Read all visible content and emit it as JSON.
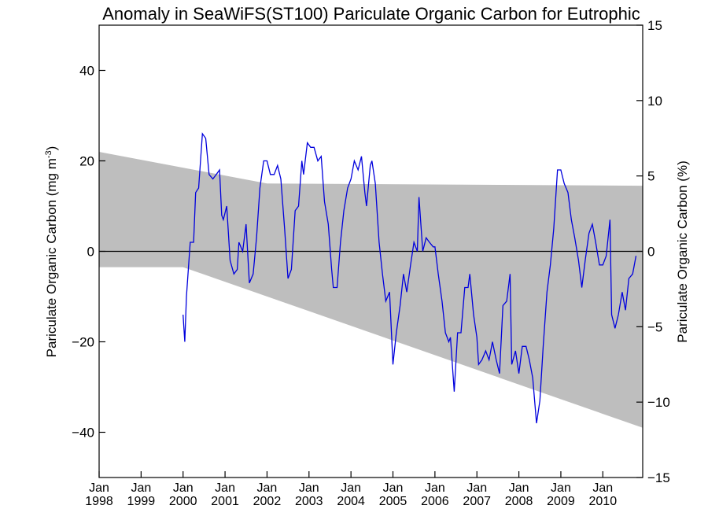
{
  "chart_data": {
    "type": "line",
    "title": "Anomaly in SeaWiFS(ST100) Pariculate Organic Carbon for Eutrophic",
    "ylabel_left": "Pariculate Organic Carbon (mg m",
    "ylabel_left_sup": "-3",
    "ylabel_left_end": ")",
    "ylabel_right": "Pariculate Organic Carbon (%)",
    "x_range": [
      1998.0,
      2010.95
    ],
    "ylim_left": [
      -50,
      50
    ],
    "ylim_right": [
      -15,
      15
    ],
    "left_ticks": [
      -40,
      -20,
      0,
      20,
      40
    ],
    "left_tick_labels": [
      "−40",
      "−20",
      "0",
      "20",
      "40"
    ],
    "right_ticks": [
      -15,
      -10,
      -5,
      0,
      5,
      10,
      15
    ],
    "right_tick_labels": [
      "−15",
      "−10",
      "−5",
      "0",
      "5",
      "10",
      "15"
    ],
    "x_ticks": [
      {
        "month": "Jan",
        "year": "1998",
        "x": 1998.0
      },
      {
        "month": "Jan",
        "year": "1999",
        "x": 1999.0
      },
      {
        "month": "Jan",
        "year": "2000",
        "x": 2000.0
      },
      {
        "month": "Jan",
        "year": "2001",
        "x": 2001.0
      },
      {
        "month": "Jan",
        "year": "2002",
        "x": 2002.0
      },
      {
        "month": "Jan",
        "year": "2003",
        "x": 2003.0
      },
      {
        "month": "Jan",
        "year": "2004",
        "x": 2004.0
      },
      {
        "month": "Jan",
        "year": "2005",
        "x": 2005.0
      },
      {
        "month": "Jan",
        "year": "2006",
        "x": 2006.0
      },
      {
        "month": "Jan",
        "year": "2007",
        "x": 2007.0
      },
      {
        "month": "Jan",
        "year": "2008",
        "x": 2008.0
      },
      {
        "month": "Jan",
        "year": "2009",
        "x": 2009.0
      },
      {
        "month": "Jan",
        "year": "2010",
        "x": 2010.0
      }
    ],
    "band": {
      "color": "#bebebe",
      "upper": [
        [
          1998.0,
          22.0
        ],
        [
          2002.0,
          15.0
        ],
        [
          2010.95,
          14.5
        ]
      ],
      "lower": [
        [
          1998.0,
          -3.5
        ],
        [
          2000.0,
          -3.5
        ],
        [
          2010.95,
          -39.0
        ]
      ]
    },
    "zero_line": 0,
    "line_color": "#0000dd",
    "series": [
      {
        "values": [
          [
            1998.0,
            -14
          ],
          [
            1998.04,
            -20
          ],
          [
            1998.08,
            -10
          ],
          [
            1998.17,
            2
          ],
          [
            1998.25,
            2
          ],
          [
            1998.3,
            13
          ],
          [
            1998.37,
            14
          ],
          [
            1998.46,
            26
          ],
          [
            1998.54,
            25
          ],
          [
            1998.62,
            17
          ],
          [
            1998.71,
            16
          ],
          [
            1998.79,
            17
          ],
          [
            1998.87,
            18
          ],
          [
            1998.92,
            8
          ],
          [
            1998.96,
            7
          ],
          [
            1999.04,
            10
          ],
          [
            1999.12,
            -2
          ],
          [
            1999.21,
            -5
          ],
          [
            1999.29,
            -4
          ],
          [
            1999.33,
            2
          ],
          [
            1999.42,
            0
          ],
          [
            1999.5,
            6
          ],
          [
            1999.58,
            -7
          ],
          [
            1999.67,
            -5
          ],
          [
            1999.75,
            3
          ],
          [
            1999.83,
            14
          ],
          [
            1999.92,
            20
          ],
          [
            2000.0,
            20
          ],
          [
            2000.08,
            17
          ],
          [
            2000.17,
            17
          ],
          [
            2000.25,
            19
          ],
          [
            2000.33,
            16
          ],
          [
            2000.42,
            5
          ],
          [
            2000.5,
            -6
          ],
          [
            2000.58,
            -4
          ],
          [
            2000.67,
            9
          ],
          [
            2000.75,
            10
          ],
          [
            2000.83,
            20
          ],
          [
            2000.87,
            17
          ],
          [
            2000.96,
            24
          ],
          [
            2001.04,
            23
          ],
          [
            2001.12,
            23
          ],
          [
            2001.21,
            20
          ],
          [
            2001.29,
            21
          ],
          [
            2001.37,
            11
          ],
          [
            2001.46,
            6
          ],
          [
            2001.54,
            -4
          ],
          [
            2001.58,
            -8
          ],
          [
            2001.67,
            -8
          ],
          [
            2001.75,
            2
          ],
          [
            2001.83,
            9
          ],
          [
            2001.92,
            14
          ],
          [
            2002.0,
            16
          ],
          [
            2002.08,
            20
          ],
          [
            2002.17,
            18
          ],
          [
            2002.25,
            21
          ],
          [
            2002.33,
            13
          ],
          [
            2002.37,
            10
          ],
          [
            2002.46,
            19
          ],
          [
            2002.5,
            20
          ],
          [
            2002.58,
            15
          ],
          [
            2002.67,
            2
          ],
          [
            2002.75,
            -5
          ],
          [
            2002.83,
            -11
          ],
          [
            2002.92,
            -9
          ],
          [
            2003.0,
            -25
          ],
          [
            2003.08,
            -18
          ],
          [
            2003.17,
            -12
          ],
          [
            2003.25,
            -5
          ],
          [
            2003.33,
            -9
          ],
          [
            2003.42,
            -3
          ],
          [
            2003.5,
            2
          ],
          [
            2003.58,
            0
          ],
          [
            2003.62,
            12
          ],
          [
            2003.71,
            0
          ],
          [
            2003.79,
            3
          ],
          [
            2003.87,
            2
          ],
          [
            2003.96,
            1
          ],
          [
            2004.0,
            1
          ],
          [
            2004.08,
            -5
          ],
          [
            2004.17,
            -11
          ],
          [
            2004.25,
            -18
          ],
          [
            2004.33,
            -20
          ],
          [
            2004.37,
            -19
          ],
          [
            2004.46,
            -31
          ],
          [
            2004.54,
            -18
          ],
          [
            2004.62,
            -18
          ],
          [
            2004.71,
            -8
          ],
          [
            2004.79,
            -8
          ],
          [
            2004.83,
            -5
          ],
          [
            2004.92,
            -14
          ],
          [
            2005.0,
            -19
          ],
          [
            2005.04,
            -25
          ],
          [
            2005.12,
            -24
          ],
          [
            2005.21,
            -22
          ],
          [
            2005.29,
            -24
          ],
          [
            2005.37,
            -20
          ],
          [
            2005.46,
            -24
          ],
          [
            2005.54,
            -27
          ],
          [
            2005.62,
            -12
          ],
          [
            2005.71,
            -11
          ],
          [
            2005.79,
            -5
          ],
          [
            2005.83,
            -25
          ],
          [
            2005.92,
            -22
          ],
          [
            2006.0,
            -27
          ],
          [
            2006.08,
            -21
          ],
          [
            2006.17,
            -21
          ],
          [
            2006.25,
            -24
          ],
          [
            2006.33,
            -28
          ],
          [
            2006.42,
            -38
          ],
          [
            2006.5,
            -33
          ],
          [
            2006.58,
            -21
          ],
          [
            2006.67,
            -9
          ],
          [
            2006.75,
            -3
          ],
          [
            2006.83,
            5
          ],
          [
            2006.92,
            18
          ],
          [
            2007.0,
            18
          ],
          [
            2007.08,
            15
          ],
          [
            2007.17,
            13
          ],
          [
            2007.25,
            7
          ],
          [
            2007.33,
            3
          ],
          [
            2007.42,
            -2
          ],
          [
            2007.5,
            -8
          ],
          [
            2007.58,
            -2
          ],
          [
            2007.67,
            4
          ],
          [
            2007.75,
            6
          ],
          [
            2007.83,
            2
          ],
          [
            2007.92,
            -3
          ],
          [
            2008.0,
            -3
          ],
          [
            2008.08,
            -1
          ],
          [
            2008.17,
            7
          ],
          [
            2008.21,
            -14
          ],
          [
            2008.29,
            -17
          ],
          [
            2008.37,
            -14
          ],
          [
            2008.46,
            -9
          ],
          [
            2008.54,
            -13
          ],
          [
            2008.62,
            -6
          ],
          [
            2008.71,
            -5
          ],
          [
            2008.79,
            -1
          ]
        ],
        "x_offset_years": 2.0
      }
    ]
  }
}
